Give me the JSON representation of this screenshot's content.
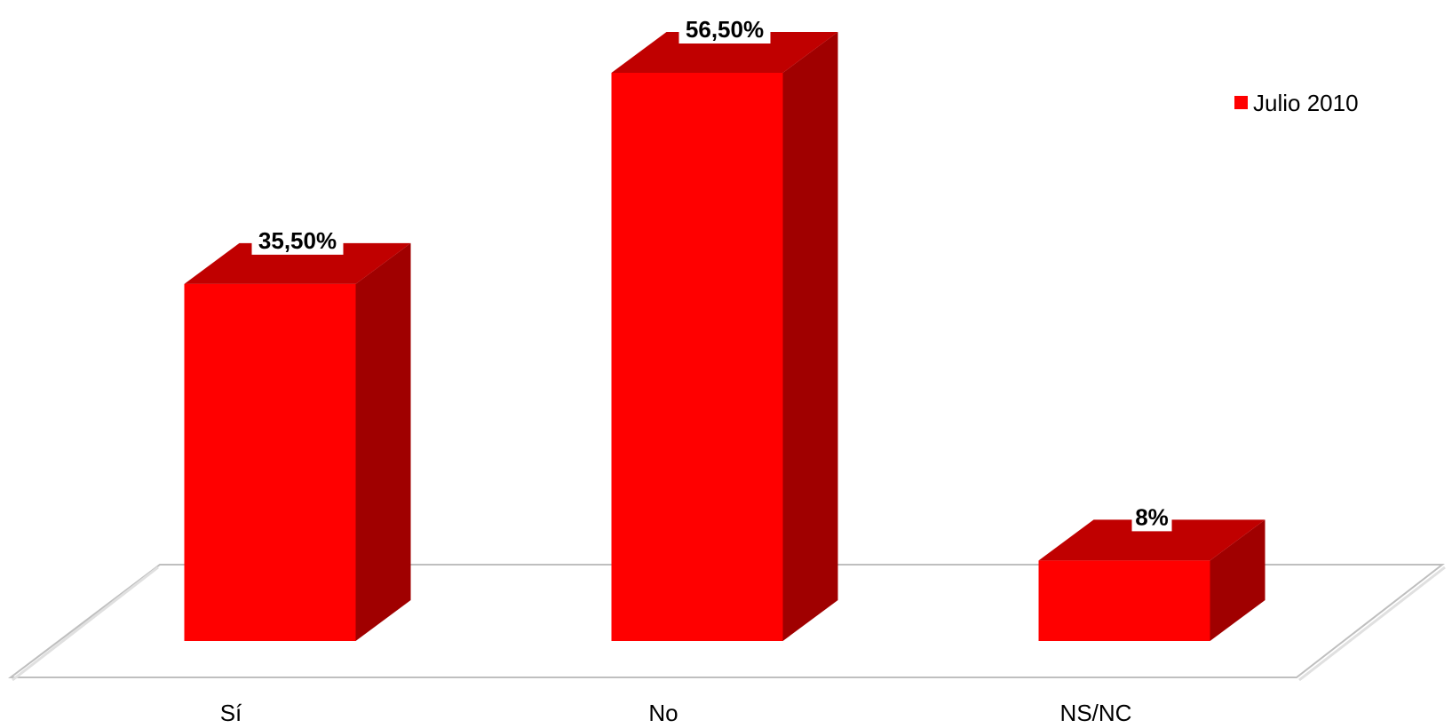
{
  "chart_data": {
    "type": "bar",
    "style": "3d-column",
    "categories": [
      "Sí",
      "No",
      "NS/NC"
    ],
    "series": [
      {
        "name": "Julio 2010",
        "values": [
          35.5,
          56.5,
          8
        ],
        "value_labels": [
          "35,50%",
          "56,50%",
          "8%"
        ],
        "color": "#ff0000",
        "top_color": "#c00000",
        "side_color": "#a00000"
      }
    ],
    "ylim": [
      0,
      56.5
    ],
    "grid": false,
    "legend_position": "right"
  }
}
